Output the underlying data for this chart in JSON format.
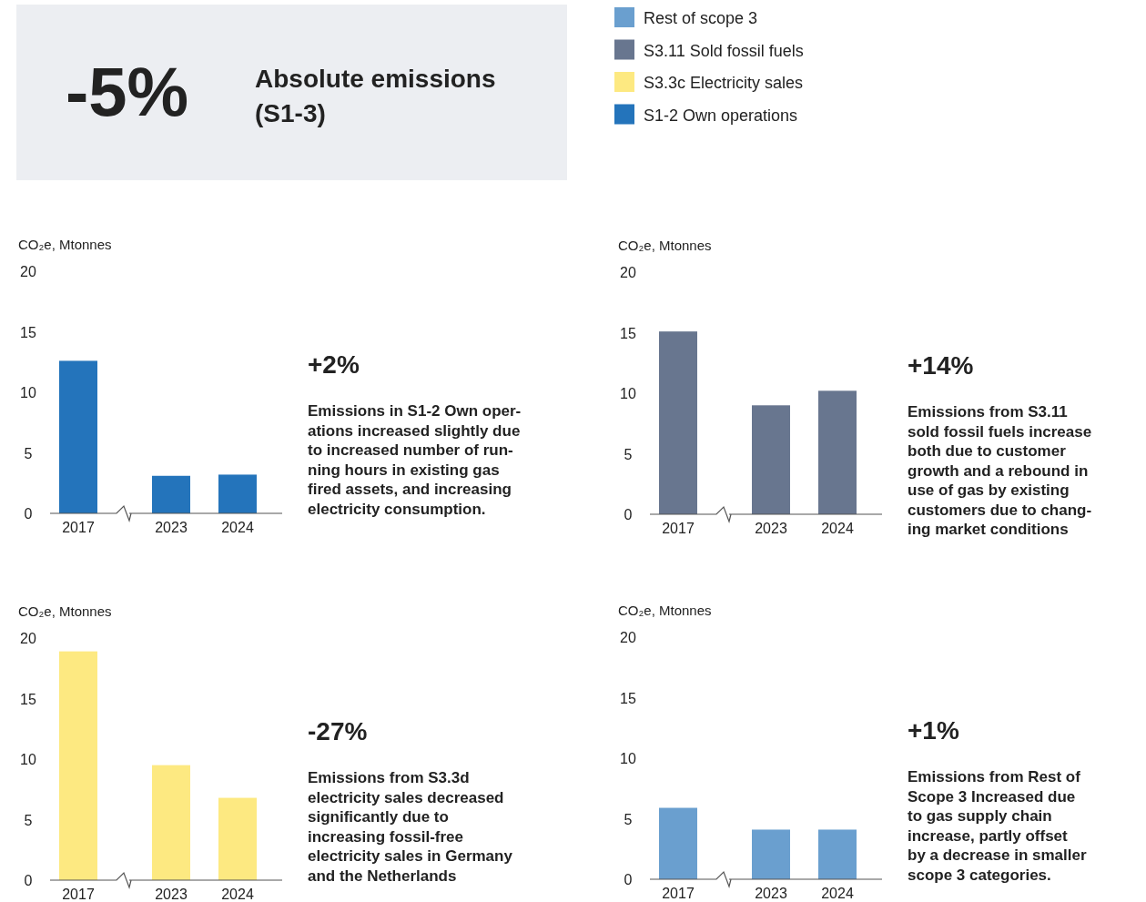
{
  "chart_data": [
    {
      "type": "other",
      "title": "-5%",
      "subtitle": "Absolute emissions\n(S1-3)",
      "legend": "top right",
      "series": [
        {
          "name": "Rest of scope 3",
          "color": "#6a9fcf"
        },
        {
          "name": "S3.11 Sold fossil fuels",
          "color": "#68768f"
        },
        {
          "name": "S3.3c Electricity sales",
          "color": "#fde981"
        },
        {
          "name": "S1-2 Own operations",
          "color": "#2474bb"
        }
      ]
    },
    {
      "type": "bar",
      "ylabel": "CO₂e, Mtonnes",
      "categories": [
        "2017",
        "2023",
        "2024"
      ],
      "values": [
        12.6,
        3.1,
        3.2
      ],
      "color": "#2474bb",
      "ylim": [
        0,
        20
      ],
      "yticks": [
        0,
        5,
        10,
        15,
        20
      ],
      "grid": false,
      "annotations": [
        "+2%",
        "Emissions in S1-2 Own oper-\nations increased slightly due\nto increased number of run-\nning hours in existing gas\nfired assets, and increasing\nelectricity consumption."
      ]
    },
    {
      "type": "bar",
      "ylabel": "CO₂e, Mtonnes",
      "categories": [
        "2017",
        "2023",
        "2024"
      ],
      "values": [
        15.1,
        9.0,
        10.2
      ],
      "color": "#68768f",
      "ylim": [
        0,
        20
      ],
      "yticks": [
        0,
        5,
        10,
        15,
        20
      ],
      "grid": false,
      "annotations": [
        "+14%",
        "Emissions from S3.11\nsold fossil fuels increase\nboth due to customer\ngrowth and a rebound in\nuse of gas by existing\ncustomers due to chang-\ning market conditions"
      ]
    },
    {
      "type": "bar",
      "ylabel": "CO₂e, Mtonnes",
      "categories": [
        "2017",
        "2023",
        "2024"
      ],
      "values": [
        18.9,
        9.5,
        6.8
      ],
      "color": "#fde981",
      "ylim": [
        0,
        20
      ],
      "yticks": [
        0,
        5,
        10,
        15,
        20
      ],
      "grid": false,
      "annotations": [
        "-27%",
        "Emissions from S3.3d\nelectricity sales decreased\nsignificantly due to\nincreasing fossil-free\nelectricity sales in Germany\nand the Netherlands"
      ]
    },
    {
      "type": "bar",
      "ylabel": "CO₂e, Mtonnes",
      "categories": [
        "2017",
        "2023",
        "2024"
      ],
      "values": [
        5.9,
        4.1,
        4.1
      ],
      "color": "#6a9fcf",
      "ylim": [
        0,
        20
      ],
      "yticks": [
        0,
        5,
        10,
        15,
        20
      ],
      "grid": false,
      "annotations": [
        "+1%",
        "Emissions from Rest of\nScope 3 Increased due\nto gas supply chain\nincrease, partly offset\nby a decrease in smaller\nscope 3 categories."
      ]
    }
  ]
}
